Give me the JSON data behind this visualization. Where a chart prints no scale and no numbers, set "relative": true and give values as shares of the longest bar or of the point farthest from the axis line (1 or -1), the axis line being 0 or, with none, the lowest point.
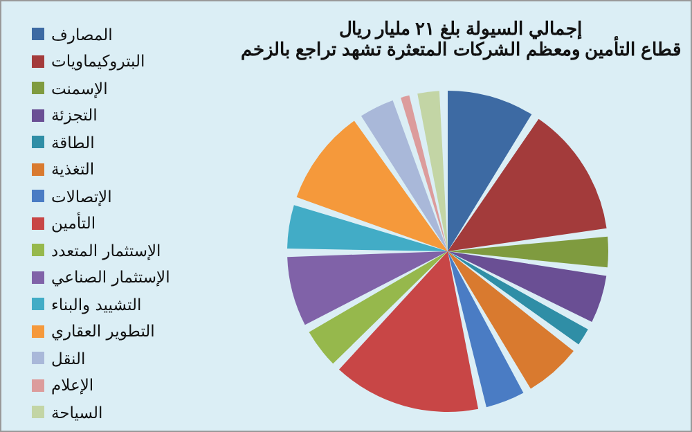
{
  "chart_data": {
    "type": "pie",
    "title": "إجمالي السيولة بلغ ٢١ مليار ريال",
    "subtitle": "قطاع التأمين ومعظم الشركات المتعثرة تشهد تراجع بالزخم",
    "categories": [
      "المصارف",
      "البتروكيماويات",
      "الإسمنت",
      "التجزئة",
      "الطاقة",
      "التغذية",
      "الإتصالات",
      "التأمين",
      "الإستثمار المتعدد",
      "الإستثمار الصناعي",
      "التشييد والبناء",
      "التطوير العقاري",
      "النقل",
      "الإعلام",
      "السياحة"
    ],
    "values": [
      10,
      15,
      3.5,
      5.5,
      2,
      6.5,
      4.5,
      17,
      4.5,
      8,
      5,
      11,
      4,
      1,
      2.5
    ],
    "colors": [
      "#3d6aa3",
      "#a33b3b",
      "#7f9b3f",
      "#6a4f94",
      "#2f8ea6",
      "#d97a2f",
      "#4a7cc4",
      "#c84646",
      "#96b84c",
      "#8062a8",
      "#42acc6",
      "#f5993b",
      "#a9b8d9",
      "#dc9c9c",
      "#c3d5a5"
    ],
    "relative": true,
    "legend": "left"
  }
}
